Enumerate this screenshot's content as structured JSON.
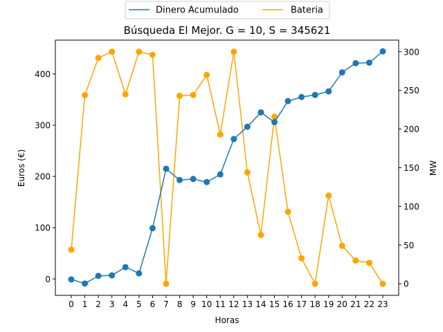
{
  "chart_data": {
    "type": "line",
    "title": "Búsqueda El Mejor. G = 10, S = 345621",
    "xlabel": "Horas",
    "ylabel_left": "Euros (€)",
    "ylabel_right": "MW",
    "x": [
      0,
      1,
      2,
      3,
      4,
      5,
      6,
      7,
      8,
      9,
      10,
      11,
      12,
      13,
      14,
      15,
      16,
      17,
      18,
      19,
      20,
      21,
      22,
      23
    ],
    "x_ticks": [
      "0",
      "1",
      "2",
      "3",
      "4",
      "5",
      "6",
      "7",
      "8",
      "9",
      "10",
      "11",
      "12",
      "13",
      "14",
      "15",
      "16",
      "17",
      "18",
      "19",
      "20",
      "21",
      "22",
      "23"
    ],
    "y_left_ticks": [
      "0",
      "100",
      "200",
      "300",
      "400"
    ],
    "y_right_ticks": [
      "0",
      "50",
      "100",
      "150",
      "200",
      "250",
      "300"
    ],
    "ylim_left": [
      -32,
      466
    ],
    "ylim_right": [
      -15,
      315
    ],
    "legend_position": "top-center",
    "grid": false,
    "series": [
      {
        "name": "Dinero Acumulado",
        "axis": "left",
        "color": "#1f77b4",
        "values": [
          -1,
          -9,
          6,
          7,
          23,
          11,
          99,
          215,
          193,
          195,
          189,
          204,
          273,
          297,
          325,
          306,
          347,
          355,
          359,
          366,
          403,
          421,
          422,
          444
        ]
      },
      {
        "name": "Bateria",
        "axis": "right",
        "color": "#ffa500",
        "values": [
          44,
          244,
          292,
          300,
          245,
          300,
          296,
          0,
          243,
          244,
          270,
          193,
          300,
          144,
          63,
          216,
          93,
          33,
          0,
          114,
          49,
          30,
          27,
          0
        ]
      }
    ]
  }
}
